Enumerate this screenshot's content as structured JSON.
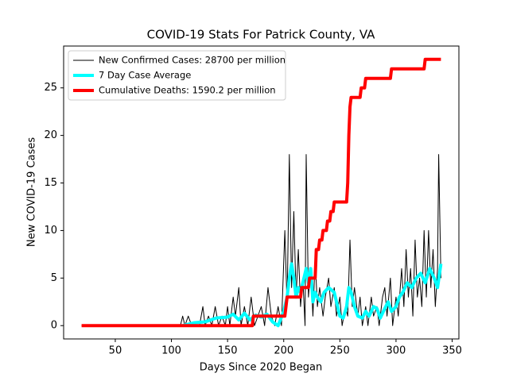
{
  "chart_data": {
    "type": "line",
    "title": "COVID-19 Stats For Patrick County, VA",
    "x_label": "Days Since 2020 Began",
    "y_label": "New COVID-19 Cases",
    "xlim": [
      4,
      356
    ],
    "ylim": [
      -1.4,
      29.4
    ],
    "xticks": [
      50,
      100,
      150,
      200,
      250,
      300,
      350
    ],
    "yticks": [
      0,
      5,
      10,
      15,
      20,
      25
    ],
    "legend": "upper left",
    "series": [
      {
        "name": "New Confirmed Cases: 28700 per million",
        "color": "#000000",
        "width": 1,
        "x": [
          20,
          108,
          110,
          112,
          115,
          118,
          122,
          125,
          128,
          130,
          133,
          136,
          139,
          142,
          145,
          148,
          150,
          152,
          155,
          157,
          160,
          162,
          165,
          168,
          171,
          174,
          177,
          180,
          183,
          186,
          189,
          192,
          195,
          198,
          201,
          203,
          205,
          207,
          209,
          211,
          213,
          215,
          217,
          219,
          220,
          222,
          224,
          226,
          228,
          230,
          232,
          235,
          237,
          240,
          242,
          245,
          247,
          250,
          252,
          255,
          257,
          259,
          261,
          263,
          266,
          268,
          270,
          273,
          275,
          278,
          280,
          283,
          285,
          288,
          290,
          292,
          295,
          297,
          300,
          302,
          305,
          307,
          309,
          311,
          313,
          315,
          317,
          319,
          321,
          323,
          325,
          327,
          329,
          331,
          333,
          335,
          337,
          338,
          340
        ],
        "values": [
          0,
          0,
          1,
          0,
          1,
          0,
          0,
          0,
          2,
          0,
          1,
          0,
          2,
          0,
          1,
          0,
          2,
          0,
          3,
          1,
          4,
          0,
          2,
          0,
          3,
          0,
          1,
          2,
          0,
          4,
          1,
          0,
          2,
          0,
          10,
          2,
          18,
          4,
          12,
          3,
          8,
          2,
          5,
          0,
          18,
          3,
          6,
          1,
          7,
          2,
          4,
          1,
          3,
          5,
          2,
          4,
          1,
          3,
          0,
          2,
          1,
          9,
          2,
          4,
          1,
          3,
          0,
          2,
          0,
          3,
          1,
          2,
          0,
          3,
          4,
          1,
          5,
          0,
          3,
          1,
          6,
          2,
          8,
          3,
          6,
          1,
          9,
          3,
          5,
          2,
          10,
          3,
          10,
          4,
          8,
          2,
          6,
          18,
          5
        ]
      },
      {
        "name": "7 Day Case Average",
        "color": "#00ffff",
        "width": 4,
        "x": [
          110,
          120,
          130,
          140,
          150,
          155,
          160,
          165,
          170,
          175,
          180,
          185,
          190,
          195,
          200,
          203,
          205,
          207,
          209,
          211,
          213,
          215,
          218,
          220,
          222,
          224,
          226,
          228,
          230,
          233,
          236,
          240,
          245,
          248,
          250,
          253,
          256,
          258,
          260,
          263,
          266,
          270,
          273,
          276,
          280,
          283,
          286,
          290,
          293,
          296,
          300,
          303,
          306,
          310,
          314,
          318,
          322,
          326,
          330,
          334,
          337,
          340
        ],
        "values": [
          0,
          0.3,
          0.4,
          0.8,
          0.9,
          1.2,
          0.6,
          1.3,
          0.6,
          1.1,
          0.9,
          1.2,
          0.4,
          0,
          1.5,
          3,
          5,
          6.5,
          5,
          3,
          4,
          3.5,
          5,
          6,
          4.5,
          6,
          2.5,
          3.5,
          3,
          2.5,
          3.5,
          4,
          3.5,
          2,
          1,
          0.8,
          2,
          4,
          3.5,
          2,
          1,
          0.8,
          1.5,
          1,
          2,
          1.8,
          0.8,
          1.8,
          2.5,
          1.5,
          2,
          3,
          3.5,
          4.5,
          4,
          5,
          5.5,
          4.5,
          6,
          5,
          4,
          6.5
        ]
      },
      {
        "name": "Cumulative Deaths: 1590.2 per million",
        "color": "#ff0000",
        "width": 4,
        "x": [
          20,
          172,
          173,
          201,
          203,
          215,
          216,
          222,
          223,
          228,
          229,
          231,
          232,
          234,
          235,
          238,
          239,
          241,
          242,
          244,
          245,
          256,
          257,
          258,
          259,
          260,
          261,
          268,
          269,
          272,
          273,
          295,
          296,
          325,
          326,
          340
        ],
        "values": [
          0,
          0,
          1,
          1,
          3,
          3,
          4,
          4,
          5,
          5,
          8,
          8,
          9,
          9,
          10,
          10,
          11,
          11,
          12,
          12,
          13,
          13,
          15,
          20,
          23,
          24,
          24,
          24,
          25,
          25,
          26,
          26,
          27,
          27,
          28,
          28
        ]
      }
    ]
  }
}
